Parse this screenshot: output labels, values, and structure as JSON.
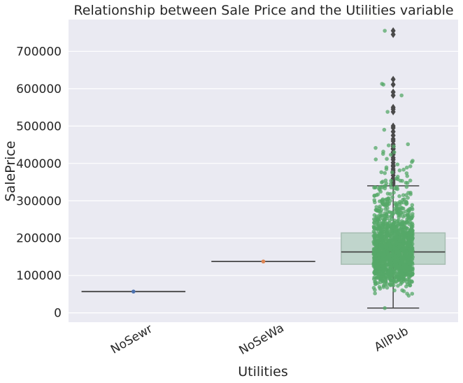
{
  "chart_data": {
    "type": "box",
    "title": "Relationship between Sale Price and the Utilities variable",
    "xlabel": "Utilities",
    "ylabel": "SalePrice",
    "categories": [
      "NoSewr",
      "NoSeWa",
      "AllPub"
    ],
    "ylim": [
      -25000,
      785000
    ],
    "yticks": [
      0,
      100000,
      200000,
      300000,
      400000,
      500000,
      600000,
      700000
    ],
    "ytick_labels": [
      "0",
      "100000",
      "200000",
      "300000",
      "400000",
      "500000",
      "600000",
      "700000"
    ],
    "grid": true,
    "boxes": [
      {
        "category": "NoSewr",
        "min": 57000,
        "q1": 57000,
        "median": 57000,
        "q3": 57000,
        "max": 57000,
        "outliers": []
      },
      {
        "category": "NoSeWa",
        "min": 137500,
        "q1": 137500,
        "median": 137500,
        "q3": 137500,
        "max": 137500,
        "outliers": []
      },
      {
        "category": "AllPub",
        "min": 12789,
        "q1": 130000,
        "median": 163000,
        "q3": 214000,
        "max": 340000,
        "outliers": [
          345000,
          350000,
          355000,
          360000,
          368000,
          375000,
          380000,
          385000,
          392000,
          395000,
          402000,
          410000,
          415000,
          424000,
          430000,
          438000,
          440000,
          446000,
          451000,
          460000,
          465000,
          475000,
          485000,
          495000,
          500000,
          538000,
          545000,
          550000,
          582000,
          591000,
          611000,
          625000,
          745000,
          755000
        ]
      }
    ],
    "strip_points": {
      "NoSewr": [
        57000
      ],
      "NoSeWa": [
        137500
      ],
      "AllPub_sample_count": 1457
    },
    "colors": {
      "background": "#eaeaf2",
      "grid": "#ffffff",
      "box_fill": "#c0d5cc",
      "box_edge": "#a6bdb2",
      "line": "#444444",
      "strip_nosewr": "#4c72b0",
      "strip_nosewa": "#dd8452",
      "strip_allpub": "#55a868"
    }
  }
}
